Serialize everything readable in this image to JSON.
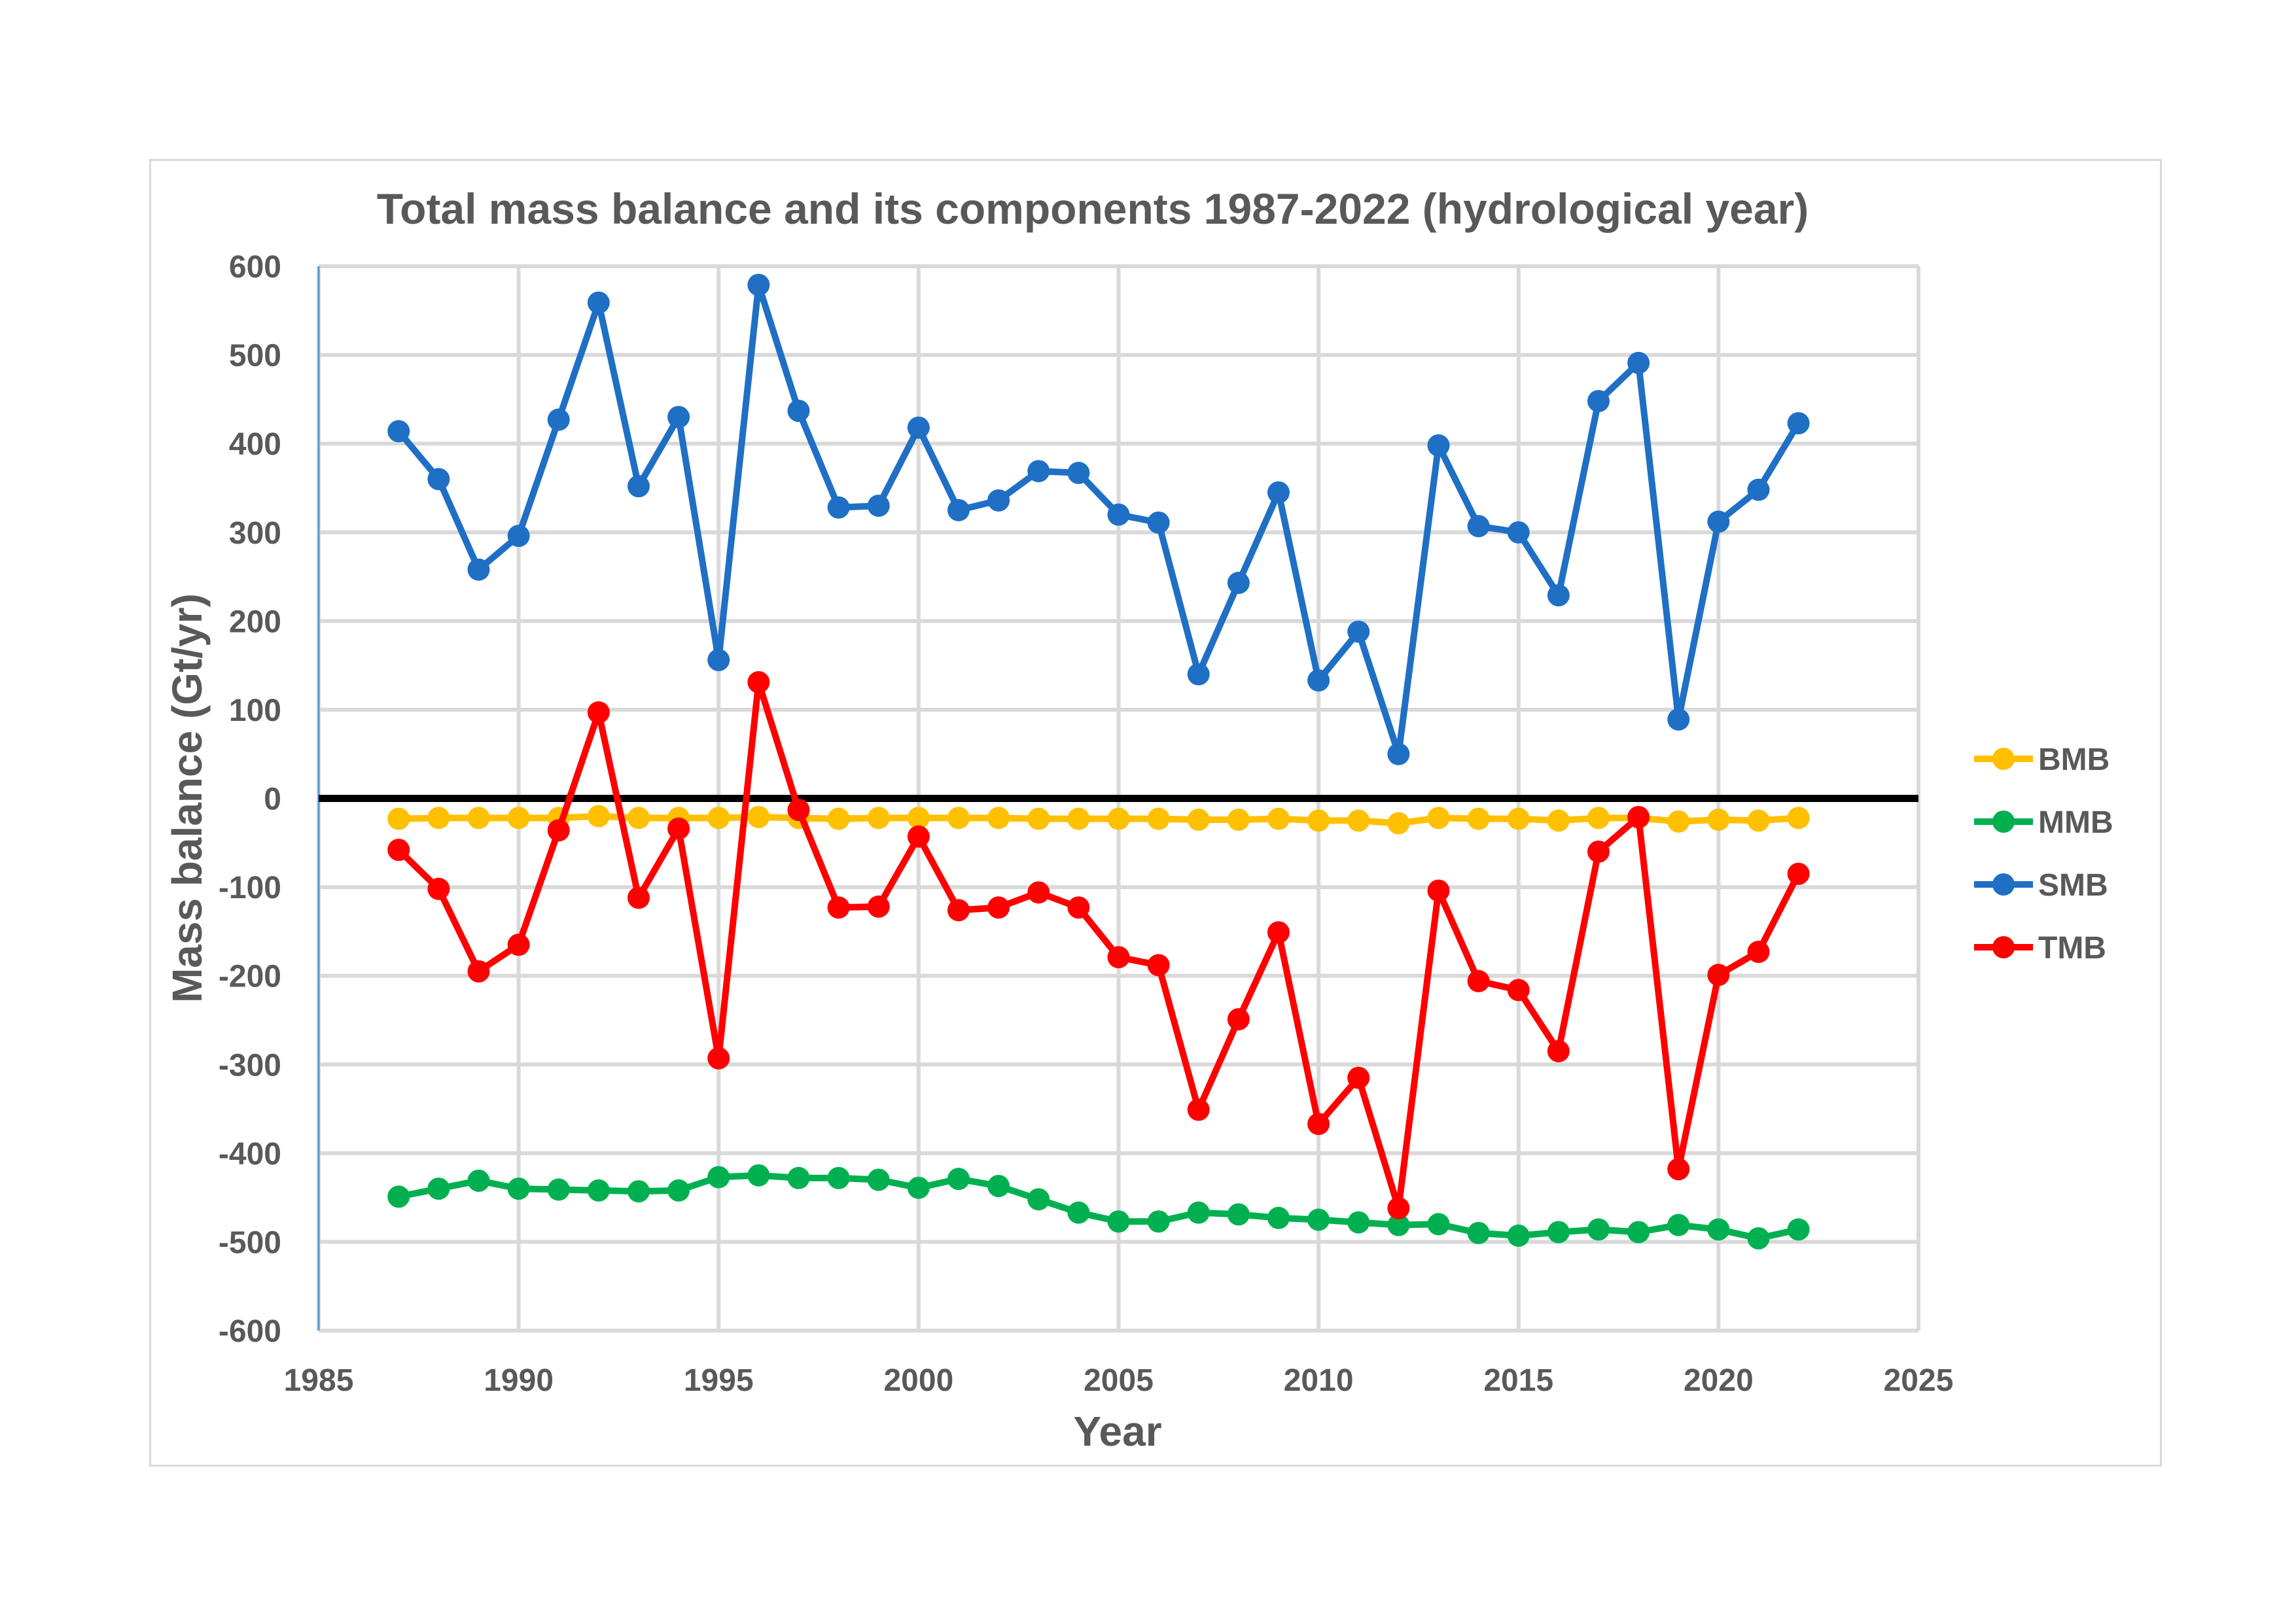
{
  "chart_data": {
    "type": "line",
    "title": "Total mass balance and its components 1987-2022 (hydrological year)",
    "xlabel": "Year",
    "ylabel": "Mass balance (Gt/yr)",
    "xlim": [
      1985,
      2025
    ],
    "ylim": [
      -600,
      600
    ],
    "xticks": [
      1985,
      1990,
      1995,
      2000,
      2005,
      2010,
      2015,
      2020,
      2025
    ],
    "yticks": [
      -600,
      -500,
      -400,
      -300,
      -200,
      -100,
      0,
      100,
      200,
      300,
      400,
      500,
      600
    ],
    "grid": true,
    "legend_position": "right",
    "zero_line": true,
    "x": [
      1987,
      1988,
      1989,
      1990,
      1991,
      1992,
      1993,
      1994,
      1995,
      1996,
      1997,
      1998,
      1999,
      2000,
      2001,
      2002,
      2003,
      2004,
      2005,
      2006,
      2007,
      2008,
      2009,
      2010,
      2011,
      2012,
      2013,
      2014,
      2015,
      2016,
      2017,
      2018,
      2019,
      2020,
      2021,
      2022
    ],
    "series": [
      {
        "name": "BMB",
        "color": "#ffc000",
        "values": [
          -23,
          -22,
          -22,
          -22,
          -22,
          -20,
          -22,
          -22,
          -22,
          -21,
          -22,
          -23,
          -22,
          -22,
          -22,
          -22,
          -23,
          -23,
          -23,
          -23,
          -24,
          -24,
          -23,
          -25,
          -25,
          -28,
          -22,
          -23,
          -23,
          -25,
          -22,
          -22,
          -26,
          -24,
          -25,
          -22
        ]
      },
      {
        "name": "MMB",
        "color": "#00b050",
        "values": [
          -449,
          -440,
          -431,
          -440,
          -441,
          -442,
          -443,
          -442,
          -427,
          -425,
          -428,
          -428,
          -430,
          -439,
          -429,
          -437,
          -452,
          -467,
          -477,
          -477,
          -467,
          -469,
          -473,
          -475,
          -478,
          -481,
          -480,
          -490,
          -493,
          -489,
          -486,
          -489,
          -481,
          -486,
          -496,
          -486
        ]
      },
      {
        "name": "SMB",
        "color": "#1f6fc5",
        "values": [
          414,
          360,
          258,
          296,
          427,
          559,
          352,
          430,
          156,
          579,
          437,
          328,
          330,
          418,
          325,
          336,
          369,
          367,
          320,
          311,
          140,
          243,
          345,
          133,
          188,
          50,
          398,
          307,
          300,
          229,
          448,
          491,
          89,
          312,
          348,
          423
        ]
      },
      {
        "name": "TMB",
        "color": "#ff0000",
        "values": [
          -58,
          -102,
          -195,
          -165,
          -36,
          97,
          -112,
          -34,
          -293,
          131,
          -13,
          -123,
          -122,
          -43,
          -126,
          -123,
          -106,
          -123,
          -179,
          -188,
          -351,
          -249,
          -151,
          -367,
          -315,
          -462,
          -104,
          -206,
          -216,
          -285,
          -60,
          -21,
          -418,
          -199,
          -173,
          -85
        ]
      }
    ]
  }
}
